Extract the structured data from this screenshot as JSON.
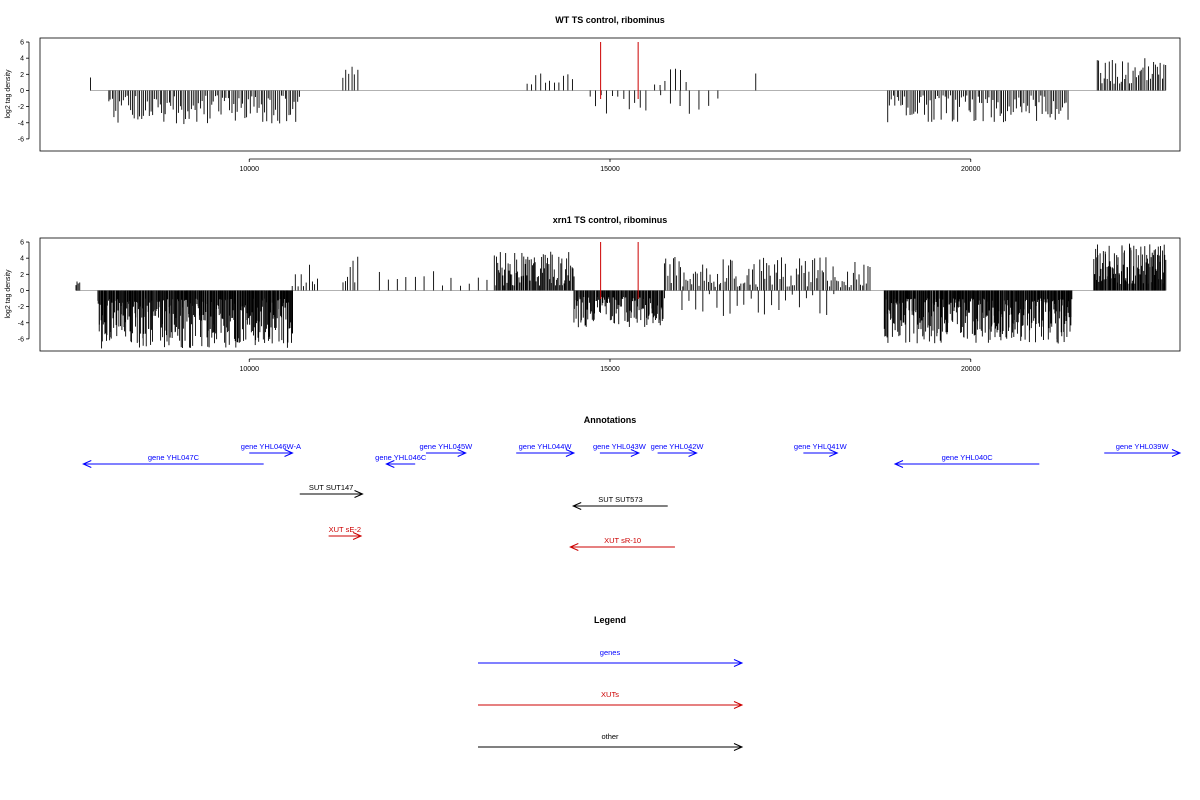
{
  "chart_data": [
    {
      "type": "bar",
      "title": "WT TS control, ribominus",
      "ylabel": "log2 tag density",
      "xlabel": "",
      "xlim": [
        7100,
        22900
      ],
      "ylim": [
        -7.5,
        6.5
      ],
      "x_ticks": [
        "10000",
        "15000",
        "20000"
      ],
      "y_ticks": [
        "6",
        "4",
        "2",
        "0",
        "-2",
        "-4",
        "-6"
      ],
      "grid": false,
      "markers": [
        14870,
        15390
      ],
      "marker_color": "#cc0000",
      "bar_color": "#000000",
      "baseline_color": "#999999",
      "regions": [
        {
          "from": 7800,
          "to": 7800,
          "sign": 1,
          "density": 1,
          "min": 1.6,
          "max": 1.6,
          "seed": 1
        },
        {
          "from": 8050,
          "to": 10700,
          "sign": -1,
          "density": 0.55,
          "min": 0.6,
          "max": 4.2,
          "seed": 11
        },
        {
          "from": 11300,
          "to": 11500,
          "sign": 1,
          "density": 0.45,
          "min": 1.2,
          "max": 3.4,
          "seed": 21
        },
        {
          "from": 13850,
          "to": 14480,
          "sign": 1,
          "density": 0.25,
          "min": 0.6,
          "max": 2.4,
          "seed": 31
        },
        {
          "from": 14720,
          "to": 15500,
          "sign": -1,
          "density": 0.2,
          "min": 0.5,
          "max": 3.2,
          "seed": 41
        },
        {
          "from": 15620,
          "to": 16050,
          "sign": 1,
          "density": 0.22,
          "min": 0.6,
          "max": 2.8,
          "seed": 51
        },
        {
          "from": 15700,
          "to": 16500,
          "sign": -1,
          "density": 0.12,
          "min": 0.5,
          "max": 3.0,
          "seed": 61
        },
        {
          "from": 17020,
          "to": 17020,
          "sign": 1,
          "density": 1,
          "min": 2.1,
          "max": 2.1,
          "seed": 71
        },
        {
          "from": 18850,
          "to": 21350,
          "sign": -1,
          "density": 0.55,
          "min": 0.6,
          "max": 4.0,
          "seed": 81
        },
        {
          "from": 21750,
          "to": 22700,
          "sign": 1,
          "density": 0.6,
          "min": 0.8,
          "max": 4.0,
          "seed": 91
        }
      ]
    },
    {
      "type": "bar",
      "title": "xrn1 TS control, ribominus",
      "ylabel": "log2 tag density",
      "xlabel": "",
      "xlim": [
        7100,
        22900
      ],
      "ylim": [
        -7.5,
        6.5
      ],
      "x_ticks": [
        "10000",
        "15000",
        "20000"
      ],
      "y_ticks": [
        "6",
        "4",
        "2",
        "0",
        "-2",
        "-4",
        "-6"
      ],
      "grid": false,
      "markers": [
        14870,
        15390
      ],
      "marker_color": "#cc0000",
      "bar_color": "#000000",
      "baseline_color": "#999999",
      "regions": [
        {
          "from": 7600,
          "to": 7650,
          "sign": 1,
          "density": 1,
          "min": 0.6,
          "max": 1.4,
          "seed": 2
        },
        {
          "from": 7900,
          "to": 10600,
          "sign": -1,
          "density": 1.6,
          "min": 1.0,
          "max": 7.2,
          "seed": 12
        },
        {
          "from": 10600,
          "to": 10950,
          "sign": 1,
          "density": 0.4,
          "min": 0.5,
          "max": 3.2,
          "seed": 22
        },
        {
          "from": 11300,
          "to": 11500,
          "sign": 1,
          "density": 0.5,
          "min": 1.0,
          "max": 4.2,
          "seed": 32
        },
        {
          "from": 11800,
          "to": 13300,
          "sign": 1,
          "density": 0.12,
          "min": 0.4,
          "max": 2.4,
          "seed": 42
        },
        {
          "from": 13400,
          "to": 14500,
          "sign": 1,
          "density": 1.0,
          "min": 0.6,
          "max": 4.8,
          "seed": 52
        },
        {
          "from": 14500,
          "to": 15750,
          "sign": -1,
          "density": 1.3,
          "min": 0.8,
          "max": 4.6,
          "seed": 62
        },
        {
          "from": 15750,
          "to": 18600,
          "sign": 1,
          "density": 0.55,
          "min": 0.4,
          "max": 4.2,
          "seed": 72
        },
        {
          "from": 16000,
          "to": 18100,
          "sign": -1,
          "density": 0.15,
          "min": 0.4,
          "max": 3.2,
          "seed": 82
        },
        {
          "from": 18800,
          "to": 21400,
          "sign": -1,
          "density": 1.6,
          "min": 1.0,
          "max": 6.6,
          "seed": 92
        },
        {
          "from": 21700,
          "to": 22700,
          "sign": 1,
          "density": 1.5,
          "min": 0.8,
          "max": 5.8,
          "seed": 102
        }
      ]
    }
  ],
  "annotations": {
    "title": "Annotations",
    "xlim": [
      7100,
      22900
    ],
    "features": [
      {
        "label": "gene YHL046W-A",
        "from": 10000,
        "to": 10600,
        "dir": 1,
        "color": "#0000ff",
        "row": 0
      },
      {
        "label": "gene YHL047C",
        "from": 7700,
        "to": 10200,
        "dir": -1,
        "color": "#0000ff",
        "row": 1
      },
      {
        "label": "gene YHL045W",
        "from": 12450,
        "to": 13000,
        "dir": 1,
        "color": "#0000ff",
        "row": 0
      },
      {
        "label": "gene YHL046C",
        "from": 11900,
        "to": 12300,
        "dir": -1,
        "color": "#0000ff",
        "row": 1
      },
      {
        "label": "gene YHL044W",
        "from": 13700,
        "to": 14500,
        "dir": 1,
        "color": "#0000ff",
        "row": 0
      },
      {
        "label": "gene YHL043W",
        "from": 14860,
        "to": 15400,
        "dir": 1,
        "color": "#0000ff",
        "row": 0
      },
      {
        "label": "gene YHL042W",
        "from": 15660,
        "to": 16200,
        "dir": 1,
        "color": "#0000ff",
        "row": 0
      },
      {
        "label": "gene YHL041W",
        "from": 17680,
        "to": 18150,
        "dir": 1,
        "color": "#0000ff",
        "row": 0
      },
      {
        "label": "gene YHL040C",
        "from": 18950,
        "to": 20950,
        "dir": -1,
        "color": "#0000ff",
        "row": 1
      },
      {
        "label": "gene YHL039W",
        "from": 21850,
        "to": 22900,
        "dir": 1,
        "color": "#0000ff",
        "row": 0
      },
      {
        "label": "SUT SUT147",
        "from": 10700,
        "to": 11570,
        "dir": 1,
        "color": "#000000",
        "row": 2
      },
      {
        "label": "SUT SUT573",
        "from": 14490,
        "to": 15800,
        "dir": -1,
        "color": "#000000",
        "row": 3
      },
      {
        "label": "XUT sE-2",
        "from": 11100,
        "to": 11550,
        "dir": 1,
        "color": "#cc0000",
        "row": 4
      },
      {
        "label": "XUT sR-10",
        "from": 14450,
        "to": 15900,
        "dir": -1,
        "color": "#cc0000",
        "row": 5
      }
    ]
  },
  "legend": {
    "title": "Legend",
    "items": [
      {
        "label": "genes",
        "color": "#0000ff"
      },
      {
        "label": "XUTs",
        "color": "#cc0000"
      },
      {
        "label": "other",
        "color": "#000000"
      }
    ]
  }
}
